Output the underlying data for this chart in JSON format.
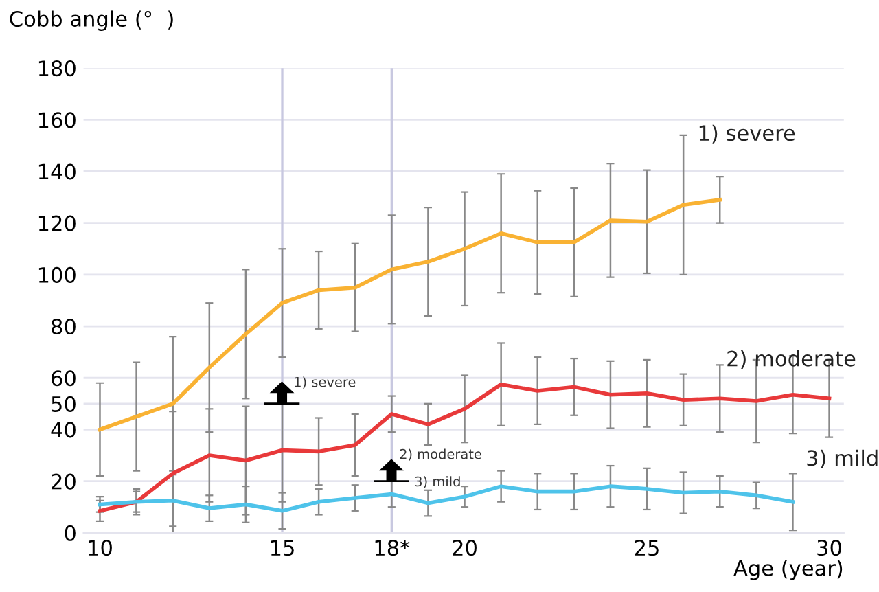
{
  "chart_data": {
    "type": "line",
    "ylabel": "Cobb angle (°  )",
    "xlabel": "Age (year)",
    "x": [
      10,
      11,
      12,
      13,
      14,
      15,
      16,
      17,
      18,
      19,
      20,
      21,
      22,
      23,
      24,
      25,
      26,
      27,
      28,
      29,
      30
    ],
    "series": [
      {
        "name": "1) severe",
        "color": "#f9b233",
        "values": [
          40,
          45,
          50,
          64,
          77,
          89,
          94,
          95,
          102,
          105,
          110,
          116,
          112.5,
          112.5,
          121,
          120.5,
          127,
          129,
          null,
          null,
          null
        ],
        "errors": [
          18,
          21,
          26,
          25,
          25,
          21,
          15,
          17,
          21,
          21,
          22,
          23,
          20,
          21,
          22,
          20,
          27,
          9,
          null,
          null,
          null
        ]
      },
      {
        "name": "2) moderate",
        "color": "#e8393a",
        "values": [
          8.5,
          12,
          23,
          30,
          28,
          32,
          31.5,
          34,
          46,
          42,
          48,
          57.5,
          55,
          56.5,
          53.5,
          54,
          51.5,
          52,
          51,
          53.5,
          52
        ],
        "errors": [
          4,
          5,
          24,
          18,
          21,
          20,
          13,
          12,
          7,
          8,
          13,
          16,
          13,
          11,
          13,
          13,
          10,
          13,
          16,
          15,
          15
        ]
      },
      {
        "name": "3) mild",
        "color": "#4ec3ea",
        "values": [
          11,
          12,
          12.5,
          9.5,
          11,
          8.5,
          12,
          13.5,
          15,
          11.5,
          14,
          18,
          16,
          16,
          18,
          17,
          15.5,
          16,
          14.5,
          12,
          null
        ],
        "errors": [
          3,
          4,
          10,
          5,
          7,
          7,
          5,
          5,
          5,
          5,
          4,
          6,
          7,
          7,
          8,
          8,
          8,
          6,
          5,
          11,
          null
        ]
      }
    ],
    "xlim": [
      9.55,
      30.4
    ],
    "xticks": [
      10,
      15,
      {
        "value": 18,
        "label": "18*"
      },
      20,
      25,
      30
    ],
    "ylim": [
      0,
      180
    ],
    "yticks": [
      0,
      20,
      40,
      50,
      60,
      80,
      100,
      120,
      140,
      160,
      180
    ],
    "grid": "y",
    "marker": "none",
    "line_style": "solid",
    "ref_lines": [
      {
        "axis": "x",
        "value": 15,
        "color": "#c8c8e0"
      },
      {
        "axis": "x",
        "value": 18,
        "color": "#c8c8e0"
      }
    ],
    "annotations": [
      "1) severe",
      "2) moderate",
      "3) mild"
    ]
  }
}
